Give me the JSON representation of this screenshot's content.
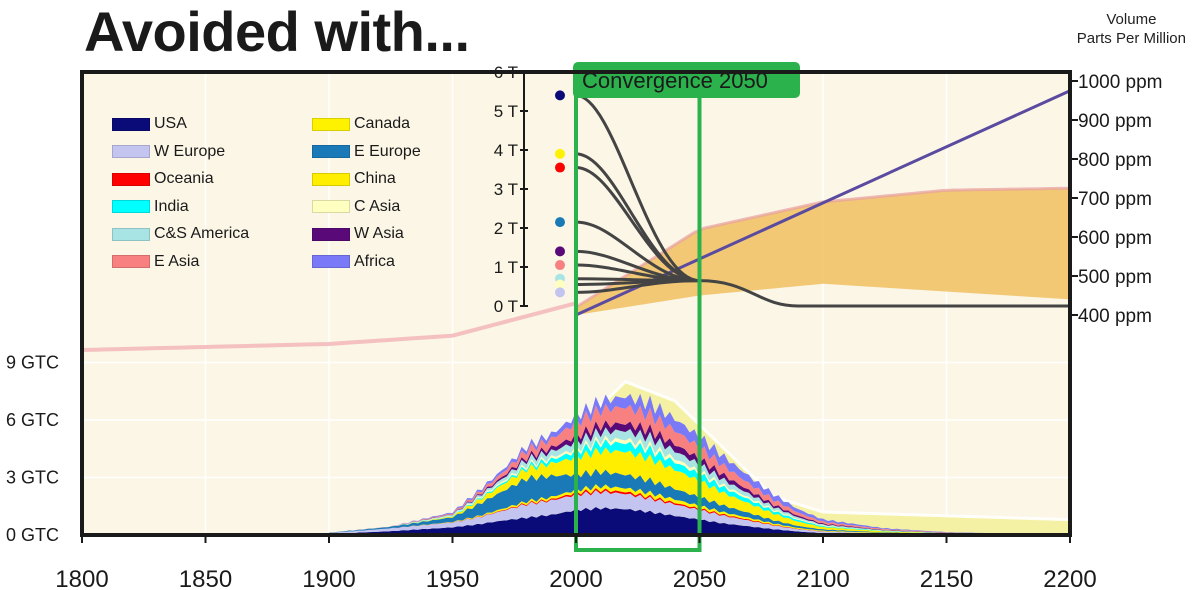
{
  "title": "Avoided with...",
  "units": {
    "line1": "Volume",
    "line2": "Parts Per Million"
  },
  "annotation": "Convergence 2050",
  "colors": {
    "frame": "#1a1a1a",
    "plot_bg": "#fbf6e6",
    "convergence": "#2bb24c",
    "ppm_band": "#f0c060",
    "co2_line": "#5a4aa0"
  },
  "legend": [
    {
      "label": "USA",
      "color": "#0a0a78"
    },
    {
      "label": "Canada",
      "color": "#fff200"
    },
    {
      "label": "W Europe",
      "color": "#c4c4f0"
    },
    {
      "label": "E Europe",
      "color": "#1a7ab8"
    },
    {
      "label": "Oceania",
      "color": "#ff0000"
    },
    {
      "label": "China",
      "color": "#ffee00"
    },
    {
      "label": "India",
      "color": "#00ffff"
    },
    {
      "label": "C Asia",
      "color": "#ffffc0"
    },
    {
      "label": "C&S America",
      "color": "#a8e4e4"
    },
    {
      "label": "W Asia",
      "color": "#5a0a78"
    },
    {
      "label": "E Asia",
      "color": "#f88080"
    },
    {
      "label": "Africa",
      "color": "#7a7af8"
    }
  ],
  "chart_data": [
    {
      "type": "area",
      "title": "Avoided with...",
      "x_ticks": [
        "1800",
        "1850",
        "1900",
        "1950",
        "2000",
        "2050",
        "2100",
        "2150",
        "2200"
      ],
      "y_ticks": [
        "0 GTC",
        "3 GTC",
        "6 GTC",
        "9 GTC"
      ],
      "xlim": [
        1800,
        2200
      ],
      "ylim": [
        0,
        9
      ],
      "x": [
        1900,
        1925,
        1950,
        1960,
        1970,
        1980,
        1990,
        2000,
        2010,
        2020,
        2030,
        2040,
        2050,
        2060,
        2070,
        2080,
        2090,
        2100,
        2125,
        2150,
        2200
      ],
      "series": [
        {
          "name": "USA",
          "values": [
            0.05,
            0.2,
            0.4,
            0.55,
            0.75,
            0.9,
            1.05,
            1.3,
            1.4,
            1.35,
            1.2,
            1.0,
            0.8,
            0.6,
            0.45,
            0.3,
            0.18,
            0.1,
            0.05,
            0.02,
            0.0
          ]
        },
        {
          "name": "W Europe",
          "values": [
            0.05,
            0.15,
            0.25,
            0.35,
            0.5,
            0.7,
            0.75,
            0.8,
            0.85,
            0.8,
            0.7,
            0.6,
            0.5,
            0.4,
            0.3,
            0.2,
            0.12,
            0.08,
            0.04,
            0.02,
            0.0
          ]
        },
        {
          "name": "Oceania",
          "values": [
            0.0,
            0.0,
            0.01,
            0.02,
            0.03,
            0.05,
            0.06,
            0.1,
            0.1,
            0.1,
            0.09,
            0.08,
            0.07,
            0.06,
            0.05,
            0.03,
            0.02,
            0.01,
            0.0,
            0.0,
            0.0
          ]
        },
        {
          "name": "Canada",
          "values": [
            0.0,
            0.0,
            0.02,
            0.05,
            0.08,
            0.1,
            0.12,
            0.15,
            0.2,
            0.2,
            0.2,
            0.18,
            0.15,
            0.12,
            0.1,
            0.07,
            0.05,
            0.03,
            0.02,
            0.01,
            0.0
          ]
        },
        {
          "name": "E Europe",
          "values": [
            0.02,
            0.08,
            0.25,
            0.6,
            0.9,
            1.2,
            1.1,
            0.8,
            0.75,
            0.7,
            0.65,
            0.55,
            0.45,
            0.35,
            0.25,
            0.17,
            0.1,
            0.07,
            0.03,
            0.01,
            0.0
          ]
        },
        {
          "name": "China",
          "values": [
            0.0,
            0.0,
            0.05,
            0.2,
            0.35,
            0.5,
            0.65,
            0.9,
            1.1,
            1.2,
            1.15,
            1.0,
            0.85,
            0.65,
            0.5,
            0.35,
            0.22,
            0.12,
            0.05,
            0.02,
            0.0
          ]
        },
        {
          "name": "India",
          "values": [
            0.0,
            0.0,
            0.02,
            0.05,
            0.08,
            0.12,
            0.2,
            0.3,
            0.4,
            0.45,
            0.45,
            0.4,
            0.35,
            0.28,
            0.2,
            0.14,
            0.09,
            0.05,
            0.02,
            0.01,
            0.0
          ]
        },
        {
          "name": "C Asia",
          "values": [
            0.0,
            0.0,
            0.02,
            0.05,
            0.08,
            0.1,
            0.12,
            0.15,
            0.18,
            0.2,
            0.2,
            0.18,
            0.15,
            0.12,
            0.1,
            0.07,
            0.05,
            0.03,
            0.01,
            0.0,
            0.0
          ]
        },
        {
          "name": "C&S America",
          "values": [
            0.0,
            0.01,
            0.05,
            0.1,
            0.15,
            0.25,
            0.3,
            0.35,
            0.4,
            0.45,
            0.45,
            0.4,
            0.35,
            0.28,
            0.2,
            0.14,
            0.09,
            0.05,
            0.02,
            0.01,
            0.0
          ]
        },
        {
          "name": "W Asia",
          "values": [
            0.0,
            0.0,
            0.02,
            0.05,
            0.1,
            0.15,
            0.2,
            0.3,
            0.35,
            0.38,
            0.38,
            0.35,
            0.3,
            0.25,
            0.18,
            0.12,
            0.08,
            0.05,
            0.02,
            0.01,
            0.0
          ]
        },
        {
          "name": "E Asia",
          "values": [
            0.0,
            0.01,
            0.05,
            0.12,
            0.2,
            0.35,
            0.45,
            0.7,
            0.8,
            0.85,
            0.8,
            0.72,
            0.6,
            0.48,
            0.36,
            0.25,
            0.16,
            0.1,
            0.04,
            0.02,
            0.0
          ]
        },
        {
          "name": "Africa",
          "values": [
            0.0,
            0.0,
            0.05,
            0.1,
            0.15,
            0.2,
            0.25,
            0.35,
            0.45,
            0.55,
            0.6,
            0.6,
            0.55,
            0.48,
            0.38,
            0.28,
            0.18,
            0.12,
            0.05,
            0.02,
            0.0
          ]
        }
      ],
      "avoided_envelope_x": [
        1980,
        2000,
        2020,
        2040,
        2060,
        2080,
        2100,
        2150,
        2200
      ],
      "avoided_envelope_y": [
        0,
        5.5,
        8.0,
        7.0,
        4.5,
        2.0,
        1.2,
        1.0,
        0.8
      ]
    },
    {
      "type": "line",
      "y_ticks_right": [
        "400 ppm",
        "500 ppm",
        "600 ppm",
        "700 ppm",
        "800 ppm",
        "900 ppm",
        "1000 ppm"
      ],
      "ylim_right": [
        400,
        1000
      ],
      "co2_ppm_historical": {
        "x": [
          1800,
          1900,
          1950,
          2000
        ],
        "y": [
          285,
          296,
          311,
          370
        ]
      },
      "co2_ppm_projection": {
        "x": [
          2000,
          2200
        ],
        "y": [
          400,
          975
        ]
      },
      "ppm_band_upper": {
        "x": [
          2000,
          2050,
          2100,
          2150,
          2200
        ],
        "y": [
          420,
          620,
          690,
          720,
          725
        ]
      },
      "ppm_band_lower": {
        "x": [
          2000,
          2050,
          2100,
          2150,
          2200
        ],
        "y": [
          400,
          450,
          480,
          460,
          440
        ]
      }
    },
    {
      "type": "line",
      "y_ticks_inset": [
        "0 T",
        "1 T",
        "2 T",
        "3 T",
        "4 T",
        "5 T",
        "6 T"
      ],
      "ylim_inset": [
        0,
        6
      ],
      "convergence_year": 2050,
      "per_capita_t": [
        {
          "name": "USA",
          "start": 5.4
        },
        {
          "name": "Canada",
          "start": 3.9
        },
        {
          "name": "Oceania",
          "start": 3.55
        },
        {
          "name": "E Europe",
          "start": 2.15
        },
        {
          "name": "W Asia",
          "start": 1.4
        },
        {
          "name": "E Asia",
          "start": 1.05
        },
        {
          "name": "C&S America",
          "start": 0.7
        },
        {
          "name": "C Asia",
          "start": 0.55
        },
        {
          "name": "W Europe",
          "start": 0.35
        }
      ],
      "converged_value": 0.65,
      "long_term_value": 0.0
    }
  ]
}
